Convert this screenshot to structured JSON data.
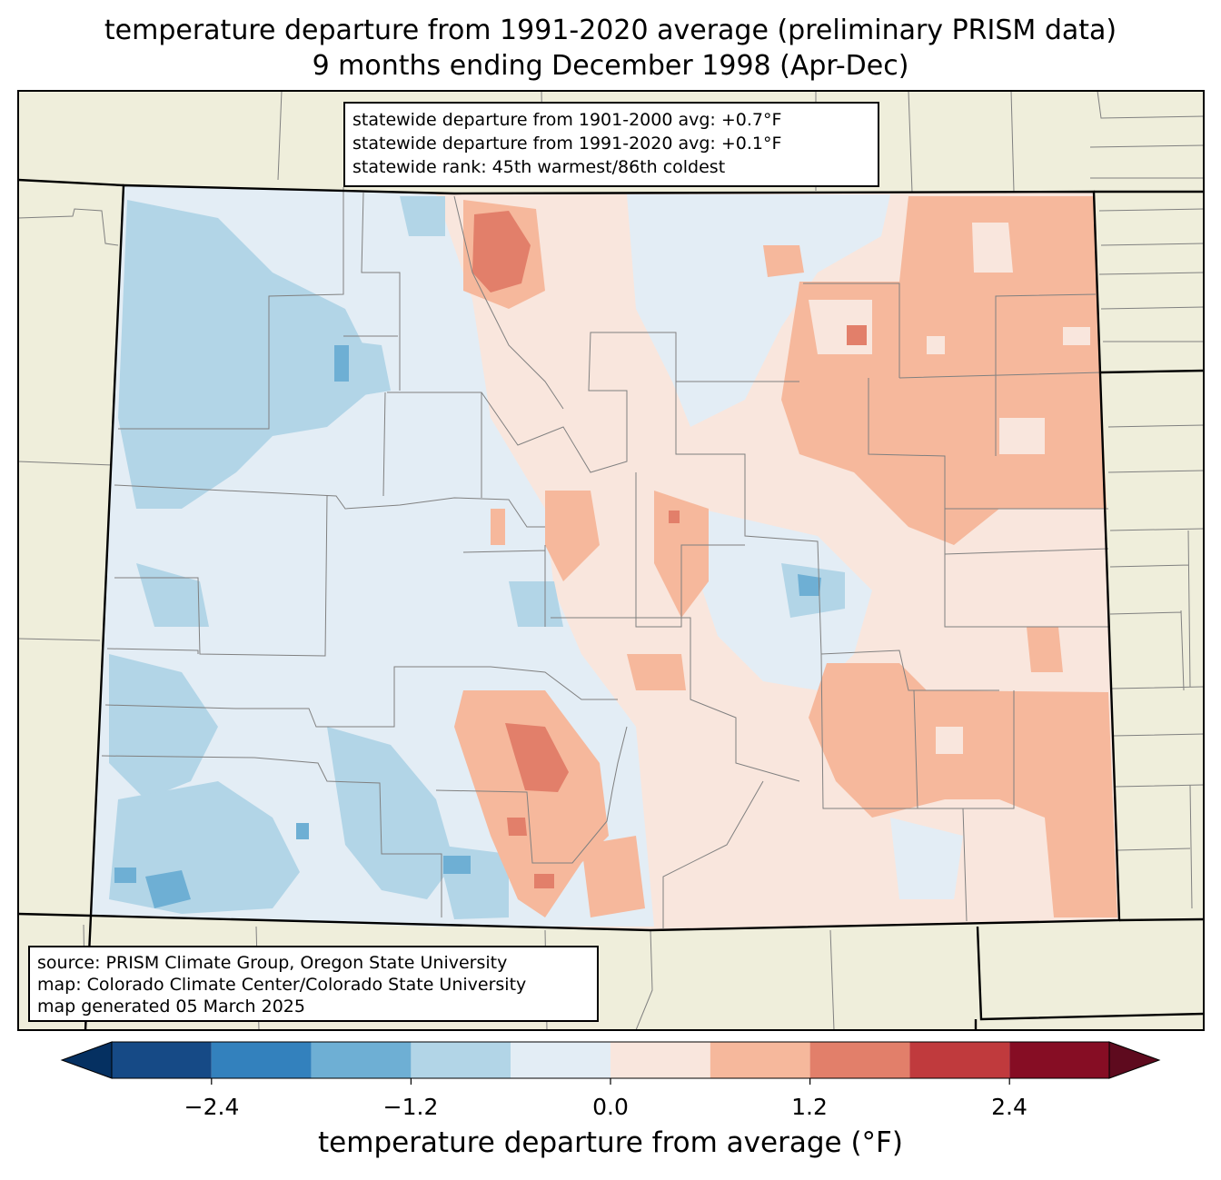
{
  "title": {
    "line1": "temperature departure from 1991-2020 average (preliminary PRISM data)",
    "line2": "9 months ending December 1998 (Apr-Dec)"
  },
  "stats": {
    "line1": "statewide departure from 1901-2000 avg: +0.7°F",
    "line2": "statewide departure from 1991-2020 avg: +0.1°F",
    "line3": "statewide rank: 45th warmest/86th coldest"
  },
  "source": {
    "line1": "source: PRISM Climate Group, Oregon State University",
    "line2": "map: Colorado Climate Center/Colorado State University",
    "line3": "map generated 05 March 2025"
  },
  "colorbar": {
    "label": "temperature departure from average (°F)",
    "ticks": [
      "−2.4",
      "−1.2",
      "0.0",
      "1.2",
      "2.4"
    ],
    "bins": [
      -3.0,
      -2.4,
      -1.8,
      -1.2,
      -0.6,
      0.0,
      0.6,
      1.2,
      1.8,
      2.4,
      3.0
    ],
    "colors": [
      "#053061",
      "#164a86",
      "#3381bd",
      "#6eafd4",
      "#b2d5e7",
      "#e3edf5",
      "#f9e6dd",
      "#f6b89c",
      "#e27f6a",
      "#c03a3d",
      "#860d24",
      "#5e0a1e"
    ]
  },
  "colors": {
    "land": "#efeedb",
    "state_border": "#000000",
    "county_line": "#808080"
  }
}
